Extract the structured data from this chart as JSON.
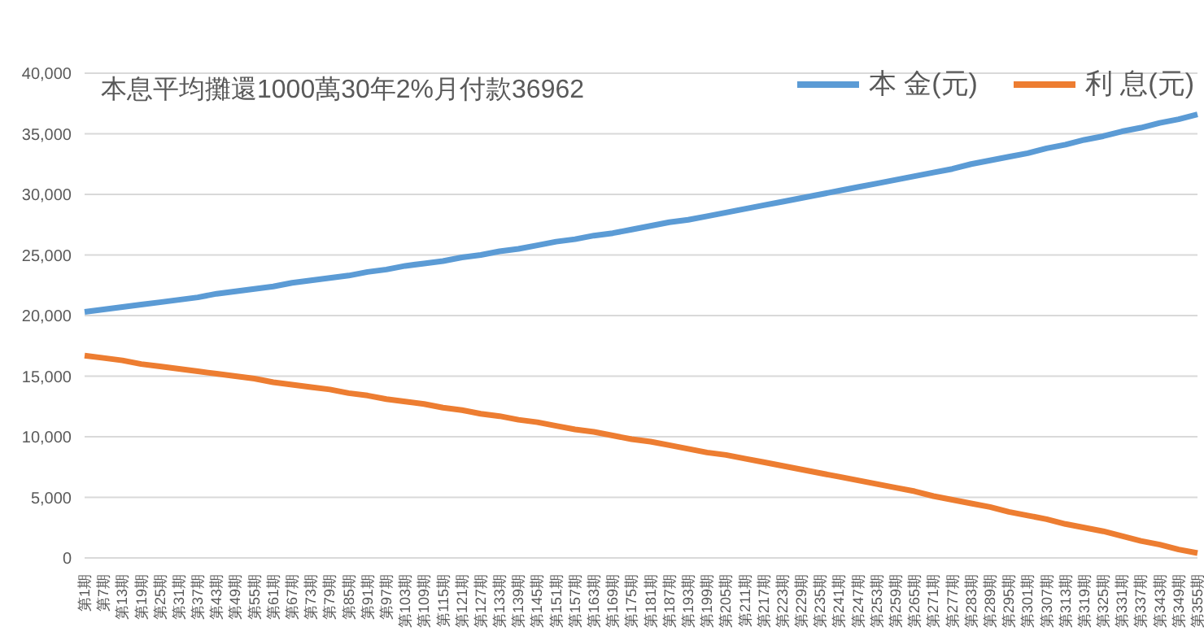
{
  "chart_data": {
    "type": "line",
    "title": "本息平均攤還1000萬30年2%月付款36962",
    "categories": [
      "第1期",
      "第7期",
      "第13期",
      "第19期",
      "第25期",
      "第31期",
      "第37期",
      "第43期",
      "第49期",
      "第55期",
      "第61期",
      "第67期",
      "第73期",
      "第79期",
      "第85期",
      "第91期",
      "第97期",
      "第103期",
      "第109期",
      "第115期",
      "第121期",
      "第127期",
      "第133期",
      "第139期",
      "第145期",
      "第151期",
      "第157期",
      "第163期",
      "第169期",
      "第175期",
      "第181期",
      "第187期",
      "第193期",
      "第199期",
      "第205期",
      "第211期",
      "第217期",
      "第223期",
      "第229期",
      "第235期",
      "第241期",
      "第247期",
      "第253期",
      "第259期",
      "第265期",
      "第271期",
      "第277期",
      "第283期",
      "第289期",
      "第295期",
      "第301期",
      "第307期",
      "第313期",
      "第319期",
      "第325期",
      "第331期",
      "第337期",
      "第343期",
      "第349期",
      "第355期"
    ],
    "series": [
      {
        "name": "本 金(元)",
        "color": "#5b9bd5",
        "values": [
          20300,
          20500,
          20700,
          20900,
          21100,
          21300,
          21500,
          21800,
          22000,
          22200,
          22400,
          22700,
          22900,
          23100,
          23300,
          23600,
          23800,
          24100,
          24300,
          24500,
          24800,
          25000,
          25300,
          25500,
          25800,
          26100,
          26300,
          26600,
          26800,
          27100,
          27400,
          27700,
          27900,
          28200,
          28500,
          28800,
          29100,
          29400,
          29700,
          30000,
          30300,
          30600,
          30900,
          31200,
          31500,
          31800,
          32100,
          32500,
          32800,
          33100,
          33400,
          33800,
          34100,
          34500,
          34800,
          35200,
          35500,
          35900,
          36200,
          36600
        ]
      },
      {
        "name": "利 息(元)",
        "color": "#ed7d31",
        "values": [
          16700,
          16500,
          16300,
          16000,
          15800,
          15600,
          15400,
          15200,
          15000,
          14800,
          14500,
          14300,
          14100,
          13900,
          13600,
          13400,
          13100,
          12900,
          12700,
          12400,
          12200,
          11900,
          11700,
          11400,
          11200,
          10900,
          10600,
          10400,
          10100,
          9800,
          9600,
          9300,
          9000,
          8700,
          8500,
          8200,
          7900,
          7600,
          7300,
          7000,
          6700,
          6400,
          6100,
          5800,
          5500,
          5100,
          4800,
          4500,
          4200,
          3800,
          3500,
          3200,
          2800,
          2500,
          2200,
          1800,
          1400,
          1100,
          700,
          400
        ]
      }
    ],
    "ylim": [
      0,
      40000
    ],
    "yticks": [
      0,
      {
        "value": 5000,
        "label": "5,000"
      },
      {
        "value": 10000,
        "label": "10,000"
      },
      {
        "value": 15000,
        "label": "15,000"
      },
      {
        "value": 20000,
        "label": "20,000"
      },
      {
        "value": 25000,
        "label": "25,000"
      },
      {
        "value": 30000,
        "label": "30,000"
      },
      {
        "value": 35000,
        "label": "35,000"
      },
      {
        "value": 40000,
        "label": "40,000"
      }
    ],
    "grid": "y",
    "legend": "top right",
    "marker": "none",
    "line_style": "solid"
  }
}
